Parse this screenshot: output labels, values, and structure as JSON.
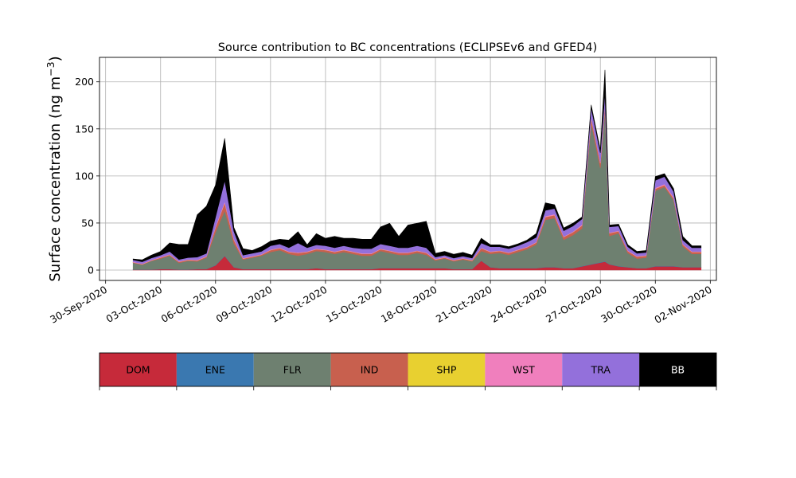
{
  "chart_data": {
    "type": "area",
    "title": "Source contribution to BC concentrations (ECLIPSEv6 and GFED4)",
    "ylabel_main": "Surface concentration (ng m",
    "ylabel_sup": "−3",
    "ylabel_close": ")",
    "xlabel": "",
    "grid": true,
    "legend_placement": "bottom",
    "xlim": [
      "2020-09-29T16:00",
      "2020-11-02T08:00"
    ],
    "ylim": [
      -11,
      226
    ],
    "yticks": [
      0,
      50,
      100,
      150,
      200
    ],
    "xtick_dates": [
      "2020-09-30",
      "2020-10-03",
      "2020-10-06",
      "2020-10-09",
      "2020-10-12",
      "2020-10-15",
      "2020-10-18",
      "2020-10-21",
      "2020-10-24",
      "2020-10-27",
      "2020-10-30",
      "2020-11-02"
    ],
    "xtick_labels": [
      "30-Sep-2020",
      "03-Oct-2020",
      "06-Oct-2020",
      "09-Oct-2020",
      "12-Oct-2020",
      "15-Oct-2020",
      "18-Oct-2020",
      "21-Oct-2020",
      "24-Oct-2020",
      "27-Oct-2020",
      "30-Oct-2020",
      "02-Nov-2020"
    ],
    "x": [
      "2020-10-01T12:00",
      "2020-10-02T00:00",
      "2020-10-02T12:00",
      "2020-10-03T00:00",
      "2020-10-03T12:00",
      "2020-10-04T00:00",
      "2020-10-04T12:00",
      "2020-10-05T00:00",
      "2020-10-05T12:00",
      "2020-10-06T00:00",
      "2020-10-06T12:00",
      "2020-10-07T00:00",
      "2020-10-07T12:00",
      "2020-10-08T00:00",
      "2020-10-08T12:00",
      "2020-10-09T00:00",
      "2020-10-09T12:00",
      "2020-10-10T00:00",
      "2020-10-10T12:00",
      "2020-10-11T00:00",
      "2020-10-11T12:00",
      "2020-10-12T00:00",
      "2020-10-12T12:00",
      "2020-10-13T00:00",
      "2020-10-13T12:00",
      "2020-10-14T00:00",
      "2020-10-14T12:00",
      "2020-10-15T00:00",
      "2020-10-15T12:00",
      "2020-10-16T00:00",
      "2020-10-16T12:00",
      "2020-10-17T00:00",
      "2020-10-17T12:00",
      "2020-10-18T00:00",
      "2020-10-18T12:00",
      "2020-10-19T00:00",
      "2020-10-19T12:00",
      "2020-10-20T00:00",
      "2020-10-20T12:00",
      "2020-10-21T00:00",
      "2020-10-21T12:00",
      "2020-10-22T00:00",
      "2020-10-22T12:00",
      "2020-10-23T00:00",
      "2020-10-23T12:00",
      "2020-10-24T00:00",
      "2020-10-24T12:00",
      "2020-10-25T00:00",
      "2020-10-25T12:00",
      "2020-10-26T00:00",
      "2020-10-26T12:00",
      "2020-10-27T00:00",
      "2020-10-27T06:00",
      "2020-10-27T12:00",
      "2020-10-28T00:00",
      "2020-10-28T12:00",
      "2020-10-29T00:00",
      "2020-10-29T12:00",
      "2020-10-30T00:00",
      "2020-10-30T12:00",
      "2020-10-31T00:00",
      "2020-10-31T12:00",
      "2020-11-01T00:00",
      "2020-11-01T12:00"
    ],
    "series": [
      {
        "name": "DOM",
        "color": "#c62a3a",
        "values": [
          0.5,
          0.5,
          0.5,
          1,
          1,
          0.5,
          0.5,
          1,
          1,
          5,
          15,
          3,
          1,
          1,
          1,
          1,
          1,
          1,
          1,
          1,
          2,
          1,
          1,
          1,
          1,
          1,
          1,
          2,
          2,
          2,
          2,
          2,
          2,
          2,
          2,
          1,
          1,
          1,
          10,
          3,
          2,
          2,
          2,
          2,
          2,
          3,
          3,
          2,
          2,
          4,
          6,
          8,
          9,
          6,
          4,
          3,
          2,
          2,
          4,
          4,
          4,
          3,
          3,
          3
        ]
      },
      {
        "name": "ENE",
        "color": "#3a78b0",
        "values": [
          0.2,
          0.2,
          0.2,
          0.2,
          0.2,
          0.2,
          0.2,
          0.2,
          0.2,
          0.3,
          0.3,
          0.2,
          0.2,
          0.2,
          0.2,
          0.2,
          0.2,
          0.2,
          0.2,
          0.2,
          0.2,
          0.2,
          0.2,
          0.2,
          0.2,
          0.2,
          0.2,
          0.2,
          0.2,
          0.2,
          0.2,
          0.2,
          0.2,
          0.2,
          0.2,
          0.2,
          0.2,
          0.2,
          0.2,
          0.2,
          0.2,
          0.2,
          0.2,
          0.2,
          0.2,
          0.3,
          0.3,
          0.2,
          0.2,
          0.3,
          0.3,
          0.4,
          0.4,
          0.3,
          0.2,
          0.2,
          0.2,
          0.2,
          0.3,
          0.3,
          0.3,
          0.2,
          0.2,
          0.2
        ]
      },
      {
        "name": "FLR",
        "color": "#6e8070",
        "values": [
          7,
          5,
          9,
          11,
          14,
          7,
          9,
          8,
          12,
          35,
          48,
          25,
          10,
          12,
          14,
          18,
          20,
          16,
          14,
          16,
          18,
          18,
          16,
          18,
          16,
          14,
          14,
          18,
          16,
          14,
          14,
          16,
          14,
          8,
          10,
          8,
          10,
          8,
          10,
          14,
          16,
          14,
          17,
          20,
          25,
          50,
          52,
          30,
          35,
          40,
          150,
          100,
          160,
          30,
          35,
          15,
          10,
          11,
          80,
          84,
          70,
          22,
          14,
          14
        ]
      },
      {
        "name": "IND",
        "color": "#c8604e",
        "values": [
          0.5,
          0.5,
          0.5,
          1,
          1,
          1,
          1,
          1,
          1,
          5,
          8,
          4,
          1,
          1,
          1,
          2,
          2,
          2,
          3,
          2,
          2,
          2,
          2,
          2,
          2,
          2,
          2,
          2,
          2,
          2,
          2,
          2,
          2,
          1,
          1,
          1,
          1,
          1,
          3,
          2,
          2,
          2,
          2,
          2,
          2,
          3,
          3,
          3,
          3,
          3,
          5,
          5,
          5,
          3,
          2,
          2,
          2,
          2,
          2,
          2,
          2,
          2,
          2,
          2
        ]
      },
      {
        "name": "SHP",
        "color": "#e8d030",
        "values": [
          0.1,
          0.1,
          0.1,
          0.1,
          0.1,
          0.1,
          0.1,
          0.1,
          0.1,
          0.1,
          0.2,
          0.1,
          0.1,
          0.1,
          0.1,
          0.1,
          0.1,
          0.1,
          0.1,
          0.1,
          0.1,
          0.1,
          0.1,
          0.1,
          0.1,
          0.1,
          0.1,
          0.1,
          0.1,
          0.1,
          0.1,
          0.1,
          0.1,
          0.1,
          0.1,
          0.1,
          0.1,
          0.1,
          0.1,
          0.1,
          0.1,
          0.1,
          0.1,
          0.1,
          0.1,
          0.1,
          0.1,
          0.1,
          0.1,
          0.1,
          0.2,
          0.2,
          0.2,
          0.1,
          0.1,
          0.1,
          0.1,
          0.1,
          0.1,
          0.1,
          0.1,
          0.1,
          0.1,
          0.1
        ]
      },
      {
        "name": "WST",
        "color": "#f07fbd",
        "values": [
          0.5,
          0.5,
          0.5,
          0.5,
          0.5,
          0.5,
          0.5,
          0.5,
          0.5,
          1,
          1.5,
          1,
          0.5,
          0.5,
          0.5,
          0.5,
          0.5,
          0.5,
          0.5,
          0.5,
          0.5,
          0.5,
          0.5,
          0.5,
          0.5,
          0.5,
          0.5,
          0.5,
          0.5,
          0.5,
          0.5,
          0.5,
          0.5,
          0.5,
          0.5,
          0.5,
          0.5,
          0.5,
          0.5,
          0.5,
          0.5,
          0.5,
          0.5,
          0.5,
          0.5,
          1,
          1,
          0.5,
          0.5,
          1,
          1,
          1,
          1,
          0.5,
          0.5,
          0.5,
          0.5,
          0.5,
          1,
          1,
          1,
          0.5,
          0.5,
          0.5
        ]
      },
      {
        "name": "TRA",
        "color": "#9370db",
        "values": [
          2,
          2,
          2,
          2,
          3,
          2,
          2,
          3,
          3,
          10,
          22,
          8,
          3,
          3,
          3,
          4,
          4,
          4,
          10,
          4,
          4,
          4,
          4,
          4,
          4,
          5,
          5,
          5,
          5,
          5,
          5,
          5,
          5,
          2,
          2,
          2,
          2,
          2,
          5,
          5,
          4,
          4,
          4,
          5,
          5,
          6,
          6,
          6,
          6,
          6,
          10,
          10,
          12,
          6,
          5,
          4,
          3,
          3,
          8,
          8,
          6,
          4,
          4,
          4
        ]
      },
      {
        "name": "BB",
        "color": "#000000",
        "values": [
          1,
          2,
          3,
          4,
          9,
          16,
          14,
          45,
          50,
          34,
          45,
          4,
          7,
          3,
          5,
          5,
          5,
          8,
          12,
          3,
          12,
          8,
          12,
          8,
          10,
          10,
          10,
          18,
          24,
          12,
          24,
          24,
          28,
          4,
          4,
          4,
          4,
          3,
          5,
          2,
          2,
          2,
          2,
          2,
          4,
          8,
          4,
          3,
          3,
          2,
          3,
          3,
          25,
          2,
          2,
          2,
          2,
          2,
          4,
          3,
          3,
          4,
          2,
          2
        ]
      }
    ],
    "legend_title": "",
    "legend": [
      {
        "name": "DOM",
        "color": "#c62a3a",
        "text_color": "#000000"
      },
      {
        "name": "ENE",
        "color": "#3a78b0",
        "text_color": "#000000"
      },
      {
        "name": "FLR",
        "color": "#6e8070",
        "text_color": "#000000"
      },
      {
        "name": "IND",
        "color": "#c8604e",
        "text_color": "#000000"
      },
      {
        "name": "SHP",
        "color": "#e8d030",
        "text_color": "#000000"
      },
      {
        "name": "WST",
        "color": "#f07fbd",
        "text_color": "#000000"
      },
      {
        "name": "TRA",
        "color": "#9370db",
        "text_color": "#000000"
      },
      {
        "name": "BB",
        "color": "#000000",
        "text_color": "#ffffff"
      }
    ]
  }
}
